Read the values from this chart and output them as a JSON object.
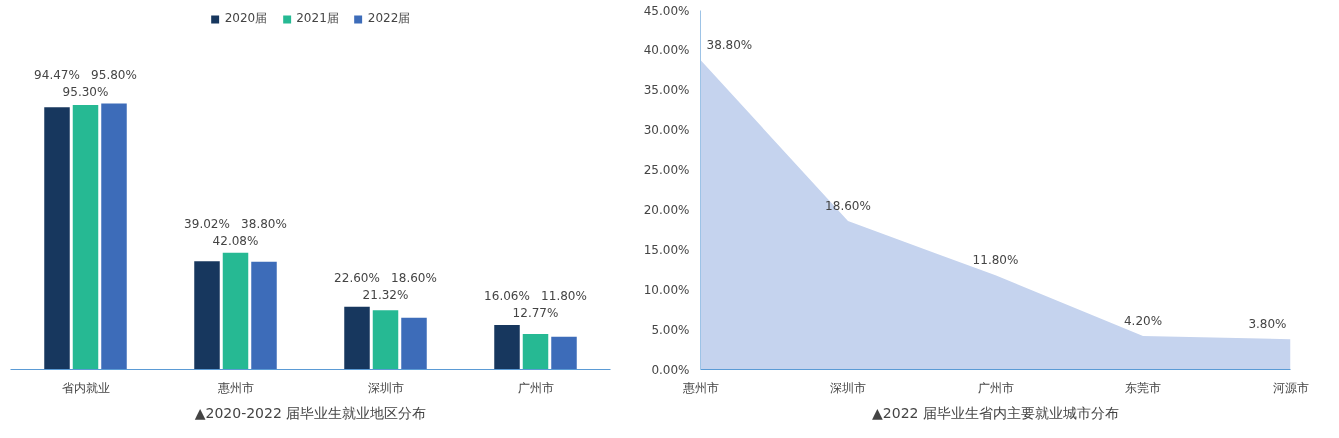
{
  "chart_data": [
    {
      "type": "bar",
      "title": "▲2020-2022 届毕业生就业地区分布",
      "categories": [
        "省内就业",
        "惠州市",
        "深圳市",
        "广州市"
      ],
      "legend": "top",
      "grid": false,
      "tick_labels": "x",
      "series": [
        {
          "name": "2020届",
          "color": "#17375e",
          "values": [
            94.47,
            39.02,
            22.6,
            16.06
          ],
          "value_labels": [
            "94.47%",
            "39.02%",
            "22.60%",
            "16.06%"
          ]
        },
        {
          "name": "2021届",
          "color": "#26b993",
          "values": [
            95.3,
            42.08,
            21.32,
            12.77
          ],
          "value_labels": [
            "95.30%",
            "42.08%",
            "21.32%",
            "12.77%"
          ]
        },
        {
          "name": "2022届",
          "color": "#3d6cb9",
          "values": [
            95.8,
            38.8,
            18.6,
            11.8
          ],
          "value_labels": [
            "95.80%",
            "38.80%",
            "18.60%",
            "11.80%"
          ]
        }
      ]
    },
    {
      "type": "area",
      "title": "▲2022 届毕业生省内主要就业城市分布",
      "categories": [
        "惠州市",
        "深圳市",
        "广州市",
        "东莞市",
        "河源市"
      ],
      "grid": false,
      "values": [
        38.8,
        18.6,
        11.8,
        4.2,
        3.8
      ],
      "color": "#c5d3ee",
      "value_labels": [
        "38.80%",
        "18.60%",
        "11.80%",
        "4.20%",
        "3.80%"
      ],
      "ylim": [
        0,
        45
      ],
      "yticks": [
        {
          "value": 0,
          "label": "0.00%"
        },
        {
          "value": 5,
          "label": "5.00%"
        },
        {
          "value": 10,
          "label": "10.00%"
        },
        {
          "value": 15,
          "label": "15.00%"
        },
        {
          "value": 20,
          "label": "20.00%"
        },
        {
          "value": 25,
          "label": "25.00%"
        },
        {
          "value": 30,
          "label": "30.00%"
        },
        {
          "value": 35,
          "label": "35.00%"
        },
        {
          "value": 40,
          "label": "40.00%"
        },
        {
          "value": 45,
          "label": "45.00%"
        }
      ]
    }
  ]
}
